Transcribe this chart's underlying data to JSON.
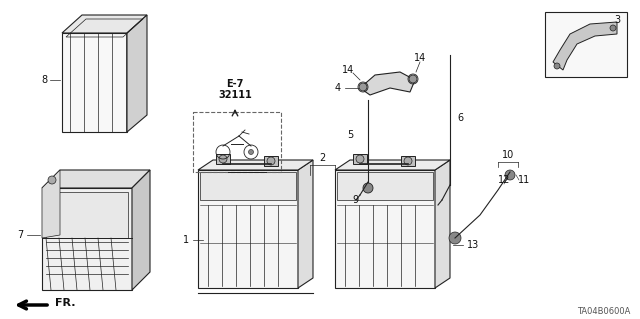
{
  "bg_color": "#ffffff",
  "diagram_code": "TA04B0600A",
  "line_color": "#222222",
  "text_color": "#111111",
  "dashed_box_color": "#555555"
}
